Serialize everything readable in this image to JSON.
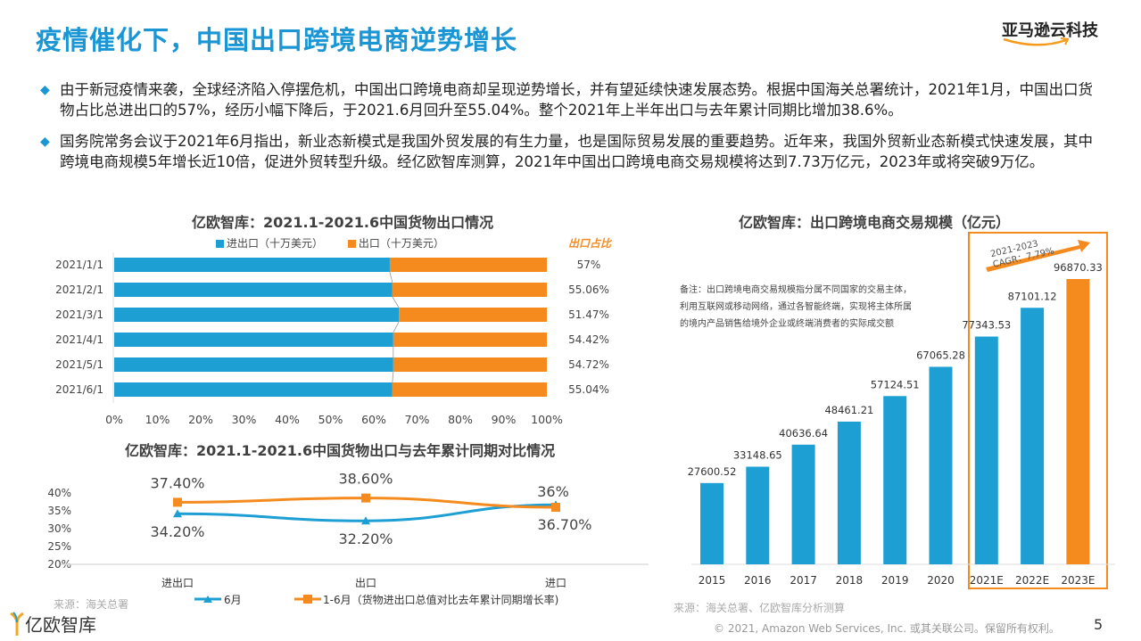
{
  "header": {
    "title": "疫情催化下，中国出口跨境电商逆势增长",
    "brand": "亚马逊云科技"
  },
  "bullets": [
    "由于新冠疫情来袭，全球经济陷入停摆危机，中国出口跨境电商却呈现逆势增长，并有望延续快速发展态势。根据中国海关总署统计，2021年1月，中国出口货物占比总进出口的57%，经历小幅下降后，于2021.6月回升至55.04%。整个2021年上半年出口与去年累计同期比增加38.6%。",
    "国务院常务会议于2021年6月指出，新业态新模式是我国外贸发展的有生力量，也是国际贸易发展的重要趋势。近年来，我国外贸新业态新模式快速发展，其中跨境电商规模5年增长近10倍，促进外贸转型升级。经亿欧智库测算，2021年中国出口跨境电商交易规模将达到7.73万亿元，2023年或将突破9万亿。"
  ],
  "colors": {
    "blue": "#1e9fd4",
    "orange": "#f58b1f",
    "title": "#1a96d4"
  },
  "chart_data": [
    {
      "type": "bar",
      "orientation": "horizontal",
      "stacked": "100%",
      "title": "亿欧智库：2021.1-2021.6中国货物出口情况",
      "categories": [
        "2021/1/1",
        "2021/2/1",
        "2021/3/1",
        "2021/4/1",
        "2021/5/1",
        "2021/6/1"
      ],
      "series": [
        {
          "name": "进出口（十万美元）",
          "values": [
            63.7,
            64.3,
            65.8,
            64.5,
            64.5,
            64.3
          ]
        },
        {
          "name": "出口（十万美元）",
          "values": [
            36.3,
            35.7,
            34.2,
            35.5,
            35.5,
            35.7
          ]
        }
      ],
      "annotation_header": "出口占比",
      "annotations": [
        "57%",
        "55.06%",
        "51.47%",
        "54.42%",
        "54.72%",
        "55.04%"
      ],
      "xticks": [
        "0%",
        "10%",
        "20%",
        "30%",
        "40%",
        "50%",
        "60%",
        "70%",
        "80%",
        "90%",
        "100%"
      ],
      "xlim": [
        0,
        100
      ]
    },
    {
      "type": "line",
      "title": "亿欧智库：2021.1-2021.6中国货物出口与去年累计同期对比情况",
      "categories": [
        "进出口",
        "出口",
        "进口"
      ],
      "series": [
        {
          "name": "6月",
          "values": [
            34.2,
            32.2,
            36.7
          ],
          "labels": [
            "34.20%",
            "32.20%",
            "36.70%"
          ]
        },
        {
          "name": "1-6月（货物进出口总值对比去年累计同期增长率)",
          "values": [
            37.4,
            38.6,
            36
          ],
          "labels": [
            "37.40%",
            "38.60%",
            "36%"
          ]
        }
      ],
      "yticks": [
        "40%",
        "35%",
        "30%",
        "25%",
        "20%"
      ],
      "ylim": [
        20,
        40
      ]
    },
    {
      "type": "bar",
      "title": "亿欧智库：出口跨境电商交易规模（亿元）",
      "categories": [
        "2015",
        "2016",
        "2017",
        "2018",
        "2019",
        "2020",
        "2021E",
        "2022E",
        "2023E"
      ],
      "values": [
        27600.52,
        33148.65,
        40636.64,
        48461.21,
        57124.51,
        67065.28,
        77343.53,
        87101.12,
        96870.33
      ],
      "labels": [
        "27600.52",
        "33148.65",
        "40636.64",
        "48461.21",
        "57124.51",
        "67065.28",
        "77343.53",
        "87101.12",
        "96870.33"
      ],
      "note": "备注：出口跨境电商交易规模指分属不同国家的交易主体，利用互联网或移动网络，通过各智能终端，实现将主体所属的境内产品销售给境外企业或终端消费者的实际成交额",
      "cagr_label": [
        "2021-2023",
        "CAGR：7.79%"
      ]
    }
  ],
  "footer": {
    "source_left": "来源：海关总署",
    "source_right": "来源：海关总署、亿欧智库分析测算",
    "copyright": "© 2021, Amazon Web Services, Inc. 或其关联公司。保留所有权利。",
    "page": "5",
    "logo": "亿欧智库"
  }
}
